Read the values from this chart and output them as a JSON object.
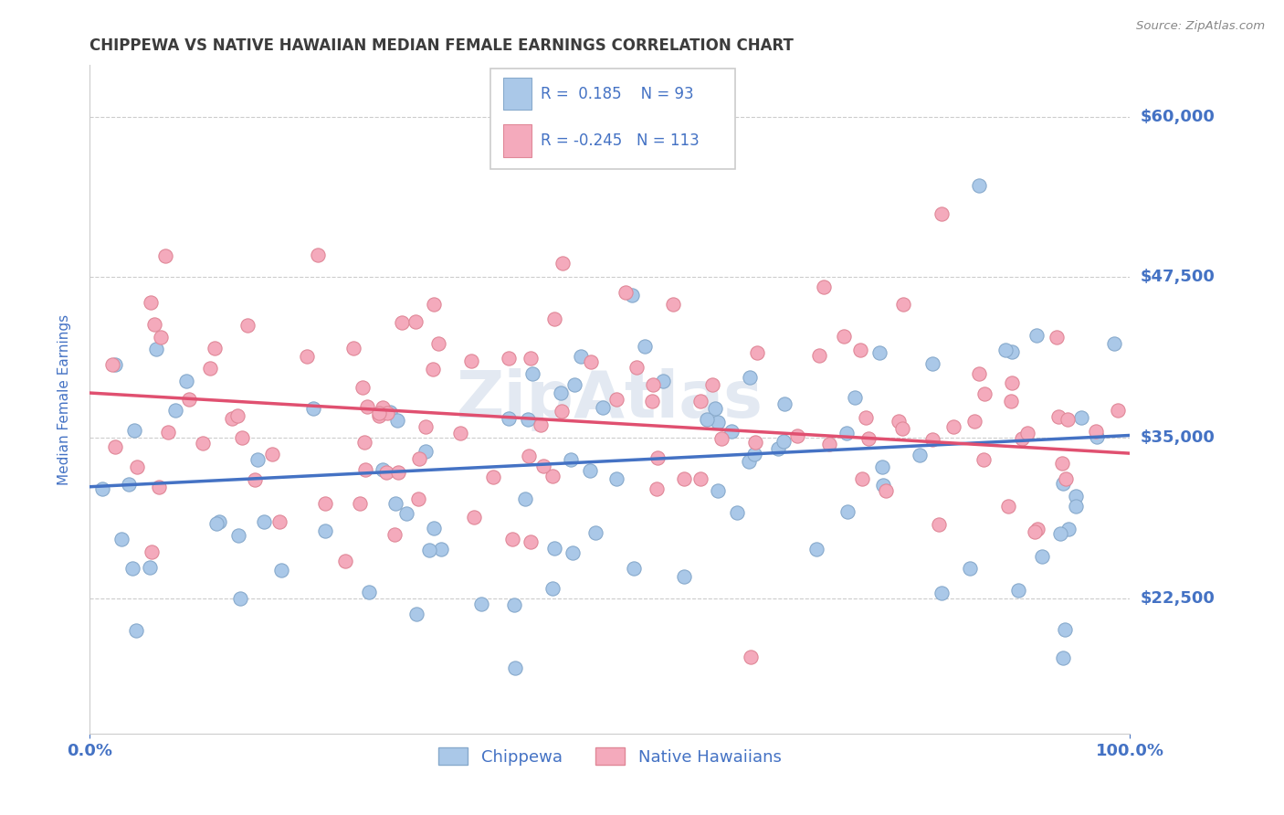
{
  "title": "CHIPPEWA VS NATIVE HAWAIIAN MEDIAN FEMALE EARNINGS CORRELATION CHART",
  "source": "Source: ZipAtlas.com",
  "ylabel": "Median Female Earnings",
  "xmin": 0.0,
  "xmax": 100.0,
  "ymin": 12000,
  "ymax": 64000,
  "yticks": [
    22500,
    35000,
    47500,
    60000
  ],
  "ytick_labels": [
    "$22,500",
    "$35,000",
    "$47,500",
    "$60,000"
  ],
  "xtick_labels": [
    "0.0%",
    "100.0%"
  ],
  "title_color": "#3c3c3c",
  "blue_color": "#aac8e8",
  "pink_color": "#f4aabc",
  "blue_edge_color": "#88aacc",
  "pink_edge_color": "#e08898",
  "blue_line_color": "#4472c4",
  "pink_line_color": "#e05070",
  "tick_label_color": "#4472c4",
  "R_blue": 0.185,
  "N_blue": 93,
  "R_pink": -0.245,
  "N_pink": 113,
  "watermark": "ZipAtlas",
  "legend_label_blue": "Chippewa",
  "legend_label_pink": "Native Hawaiians",
  "blue_line_y0": 31200,
  "blue_line_y1": 35200,
  "pink_line_y0": 38500,
  "pink_line_y1": 33800,
  "grid_color": "#cccccc",
  "source_color": "#888888"
}
